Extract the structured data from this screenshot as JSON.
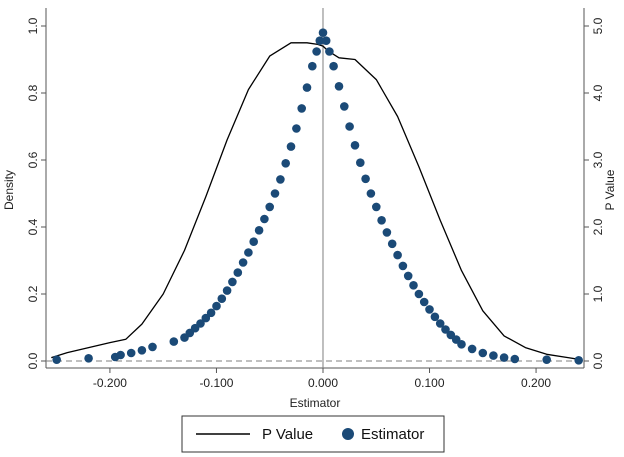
{
  "chart_data": {
    "type": "scatter",
    "xlabel": "Estimator",
    "ylabel_left": "Density",
    "ylabel_right": "P Value",
    "xlim": [
      -0.26,
      0.245
    ],
    "ylim_left": [
      0,
      1
    ],
    "ylim_right": [
      0,
      5
    ],
    "x_ticks": [
      -0.2,
      -0.1,
      0.0,
      0.1,
      0.2
    ],
    "x_tick_labels": [
      "-0.200",
      "-0.100",
      "0.000",
      "0.100",
      "0.200"
    ],
    "y_left_ticks": [
      0,
      0.2,
      0.4,
      0.6,
      0.8,
      1.0
    ],
    "y_left_tick_labels": [
      "0.0",
      "0.2",
      "0.4",
      "0.6",
      "0.8",
      "1.0"
    ],
    "y_right_ticks": [
      0,
      1,
      2,
      3,
      4,
      5
    ],
    "y_right_tick_labels": [
      "0.0",
      "1.0",
      "2.0",
      "3.0",
      "4.0",
      "5.0"
    ],
    "vertical_reference_x": 0.0,
    "horizontal_reference_y": 0.0,
    "legend_position": "bottom",
    "grid": false,
    "colors": {
      "line": "#000000",
      "points": "#1b4a77",
      "reference": "#7f7f7f"
    },
    "series": [
      {
        "name": "P Value",
        "kind": "line",
        "axis": "left",
        "x": [
          -0.255,
          -0.24,
          -0.22,
          -0.2,
          -0.185,
          -0.17,
          -0.15,
          -0.13,
          -0.11,
          -0.09,
          -0.07,
          -0.05,
          -0.03,
          -0.015,
          -0.005,
          0.0,
          0.005,
          0.015,
          0.03,
          0.05,
          0.07,
          0.09,
          0.11,
          0.13,
          0.15,
          0.17,
          0.19,
          0.21,
          0.23,
          0.24
        ],
        "y": [
          0.01,
          0.025,
          0.04,
          0.055,
          0.065,
          0.11,
          0.2,
          0.33,
          0.49,
          0.66,
          0.81,
          0.91,
          0.95,
          0.95,
          0.945,
          0.94,
          0.925,
          0.905,
          0.9,
          0.84,
          0.73,
          0.58,
          0.42,
          0.27,
          0.15,
          0.075,
          0.04,
          0.02,
          0.01,
          0.005
        ]
      },
      {
        "name": "Estimator",
        "kind": "scatter",
        "axis": "right",
        "x": [
          -0.25,
          -0.22,
          -0.195,
          -0.19,
          -0.18,
          -0.17,
          -0.16,
          -0.14,
          -0.13,
          -0.125,
          -0.12,
          -0.115,
          -0.11,
          -0.105,
          -0.1,
          -0.095,
          -0.09,
          -0.085,
          -0.08,
          -0.075,
          -0.07,
          -0.065,
          -0.06,
          -0.055,
          -0.05,
          -0.045,
          -0.04,
          -0.035,
          -0.03,
          -0.025,
          -0.02,
          -0.015,
          -0.01,
          -0.006,
          -0.003,
          0.0,
          0.003,
          0.006,
          0.01,
          0.015,
          0.02,
          0.025,
          0.03,
          0.035,
          0.04,
          0.045,
          0.05,
          0.055,
          0.06,
          0.065,
          0.07,
          0.075,
          0.08,
          0.085,
          0.09,
          0.095,
          0.1,
          0.105,
          0.11,
          0.115,
          0.12,
          0.125,
          0.13,
          0.14,
          0.15,
          0.16,
          0.17,
          0.18,
          0.21,
          0.24
        ],
        "y": [
          0.02,
          0.04,
          0.06,
          0.09,
          0.12,
          0.16,
          0.21,
          0.29,
          0.35,
          0.42,
          0.49,
          0.56,
          0.64,
          0.72,
          0.82,
          0.93,
          1.05,
          1.18,
          1.32,
          1.47,
          1.62,
          1.78,
          1.95,
          2.12,
          2.3,
          2.5,
          2.71,
          2.95,
          3.2,
          3.47,
          3.77,
          4.08,
          4.4,
          4.62,
          4.78,
          4.9,
          4.78,
          4.62,
          4.4,
          4.1,
          3.8,
          3.5,
          3.22,
          2.96,
          2.72,
          2.5,
          2.3,
          2.1,
          1.92,
          1.75,
          1.58,
          1.42,
          1.27,
          1.13,
          1.0,
          0.88,
          0.77,
          0.66,
          0.56,
          0.47,
          0.39,
          0.32,
          0.25,
          0.18,
          0.12,
          0.08,
          0.05,
          0.03,
          0.02,
          0.01
        ]
      }
    ]
  }
}
